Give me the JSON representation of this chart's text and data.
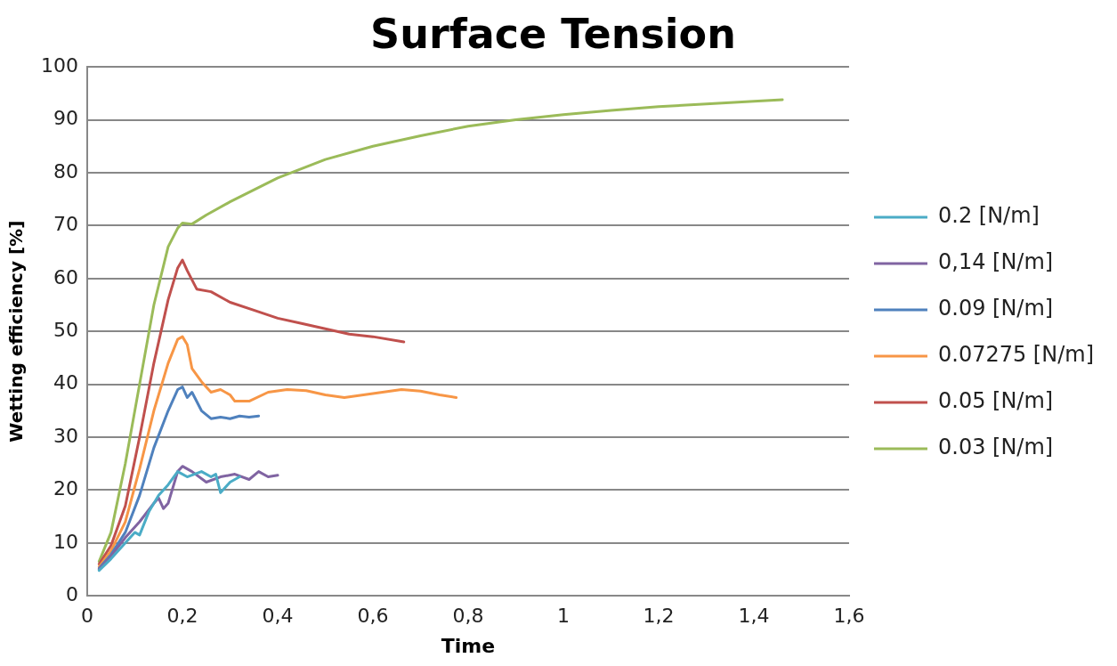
{
  "chart_data": {
    "type": "line",
    "title": "Surface Tension",
    "xlabel": "Time",
    "ylabel": "Wetting efficiency [%]",
    "xlim": [
      0,
      1.6
    ],
    "xticks": [
      0,
      {
        "value": 0.2,
        "label": "0,2"
      },
      {
        "value": 0.4,
        "label": "0,4"
      },
      {
        "value": 0.6,
        "label": "0,6"
      },
      {
        "value": 0.8,
        "label": "0,8"
      },
      1,
      {
        "value": 1.2,
        "label": "1,2"
      },
      {
        "value": 1.4,
        "label": "1,4"
      },
      {
        "value": 1.6,
        "label": "1,6"
      }
    ],
    "ylim": [
      0,
      100
    ],
    "yticks": [
      0,
      10,
      20,
      30,
      40,
      50,
      60,
      70,
      80,
      90,
      100
    ],
    "grid": "y",
    "legend": "right",
    "marker": "none",
    "line_style": "solid",
    "series": [
      {
        "name": "0.2 [N/m]",
        "color": "#4bacc6",
        "x": [
          0.025,
          0.05,
          0.08,
          0.1,
          0.11,
          0.13,
          0.15,
          0.17,
          0.19,
          0.21,
          0.24,
          0.26,
          0.27,
          0.28,
          0.3,
          0.32
        ],
        "values": [
          4.8,
          7,
          10,
          12,
          11.5,
          16,
          19,
          21,
          23.5,
          22.5,
          23.5,
          22.5,
          23,
          19.5,
          21.5,
          22.5
        ]
      },
      {
        "name": "0,14 [N/m]",
        "color": "#8064a2",
        "x": [
          0.025,
          0.05,
          0.08,
          0.11,
          0.14,
          0.15,
          0.16,
          0.17,
          0.19,
          0.2,
          0.22,
          0.25,
          0.28,
          0.31,
          0.34,
          0.36,
          0.38,
          0.4
        ],
        "values": [
          5,
          7.5,
          11,
          14,
          17.5,
          18.5,
          16.5,
          17.5,
          23.5,
          24.5,
          23.5,
          21.5,
          22.5,
          23,
          22,
          23.5,
          22.5,
          22.8
        ]
      },
      {
        "name": "0.09 [N/m]",
        "color": "#4f81bd",
        "x": [
          0.025,
          0.05,
          0.08,
          0.11,
          0.14,
          0.17,
          0.19,
          0.2,
          0.21,
          0.22,
          0.24,
          0.26,
          0.28,
          0.3,
          0.32,
          0.34,
          0.36
        ],
        "values": [
          5.2,
          7.8,
          12,
          19,
          28,
          35,
          39,
          39.5,
          37.5,
          38.5,
          35,
          33.5,
          33.8,
          33.5,
          34,
          33.8,
          34
        ]
      },
      {
        "name": "0.07275 [N/m]",
        "color": "#f79646",
        "x": [
          0.025,
          0.05,
          0.08,
          0.11,
          0.14,
          0.17,
          0.19,
          0.2,
          0.21,
          0.22,
          0.24,
          0.26,
          0.28,
          0.3,
          0.31,
          0.34,
          0.38,
          0.42,
          0.46,
          0.5,
          0.54,
          0.58,
          0.62,
          0.66,
          0.7,
          0.74,
          0.775
        ],
        "values": [
          5.5,
          8.5,
          14,
          24,
          35,
          44,
          48.5,
          49,
          47.5,
          43,
          40.5,
          38.5,
          39,
          38,
          36.8,
          36.8,
          38.5,
          39,
          38.8,
          38,
          37.5,
          38,
          38.5,
          39,
          38.7,
          38,
          37.5
        ]
      },
      {
        "name": "0.05 [N/m]",
        "color": "#c0504d",
        "x": [
          0.025,
          0.05,
          0.08,
          0.11,
          0.14,
          0.17,
          0.19,
          0.2,
          0.21,
          0.23,
          0.26,
          0.3,
          0.35,
          0.4,
          0.45,
          0.5,
          0.55,
          0.6,
          0.665
        ],
        "values": [
          6,
          9.5,
          17,
          30,
          44,
          56,
          62,
          63.5,
          61.5,
          58,
          57.5,
          55.5,
          54,
          52.5,
          51.5,
          50.5,
          49.5,
          49,
          48
        ]
      },
      {
        "name": "0.03 [N/m]",
        "color": "#9bbb59",
        "x": [
          0.025,
          0.05,
          0.08,
          0.11,
          0.14,
          0.17,
          0.19,
          0.2,
          0.22,
          0.25,
          0.3,
          0.4,
          0.5,
          0.6,
          0.7,
          0.8,
          0.9,
          1.0,
          1.1,
          1.2,
          1.3,
          1.4,
          1.46
        ],
        "values": [
          6.5,
          12,
          25,
          40,
          55,
          66,
          69.5,
          70.5,
          70.3,
          72,
          74.5,
          79,
          82.5,
          85,
          87,
          88.8,
          90,
          91,
          91.8,
          92.5,
          93,
          93.5,
          93.8
        ]
      }
    ]
  }
}
